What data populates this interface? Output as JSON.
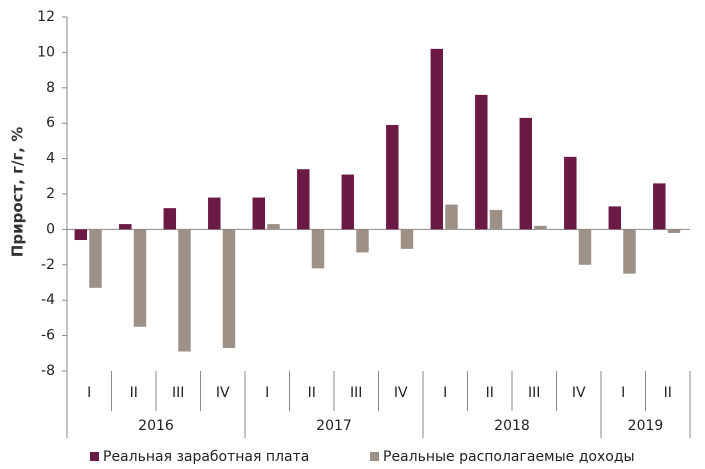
{
  "chart_data": {
    "type": "bar",
    "y_label": "Прирост, г/г, %",
    "categories": [
      "I",
      "II",
      "III",
      "IV",
      "I",
      "II",
      "III",
      "IV",
      "I",
      "II",
      "III",
      "IV",
      "I",
      "II"
    ],
    "groups": [
      {
        "label": "2016",
        "count": 4
      },
      {
        "label": "2017",
        "count": 4
      },
      {
        "label": "2018",
        "count": 4
      },
      {
        "label": "2019",
        "count": 2
      }
    ],
    "series": [
      {
        "name": "Реальная заработная плата",
        "color": "#6b1a45",
        "values": [
          -0.6,
          0.3,
          1.2,
          1.8,
          1.8,
          3.4,
          3.1,
          5.9,
          10.2,
          7.6,
          6.3,
          4.1,
          1.3,
          2.6
        ]
      },
      {
        "name": "Реальные располагаемые доходы",
        "color": "#9d9087",
        "values": [
          -3.3,
          -5.5,
          -6.9,
          -6.7,
          0.3,
          -2.2,
          -1.3,
          -1.1,
          1.4,
          1.1,
          0.2,
          -2.0,
          -2.5,
          -0.2
        ]
      }
    ],
    "ylim": [
      -8,
      12
    ],
    "yticks": [
      -8,
      -6,
      -4,
      -2,
      0,
      2,
      4,
      6,
      8,
      10,
      12
    ],
    "grid": false
  }
}
